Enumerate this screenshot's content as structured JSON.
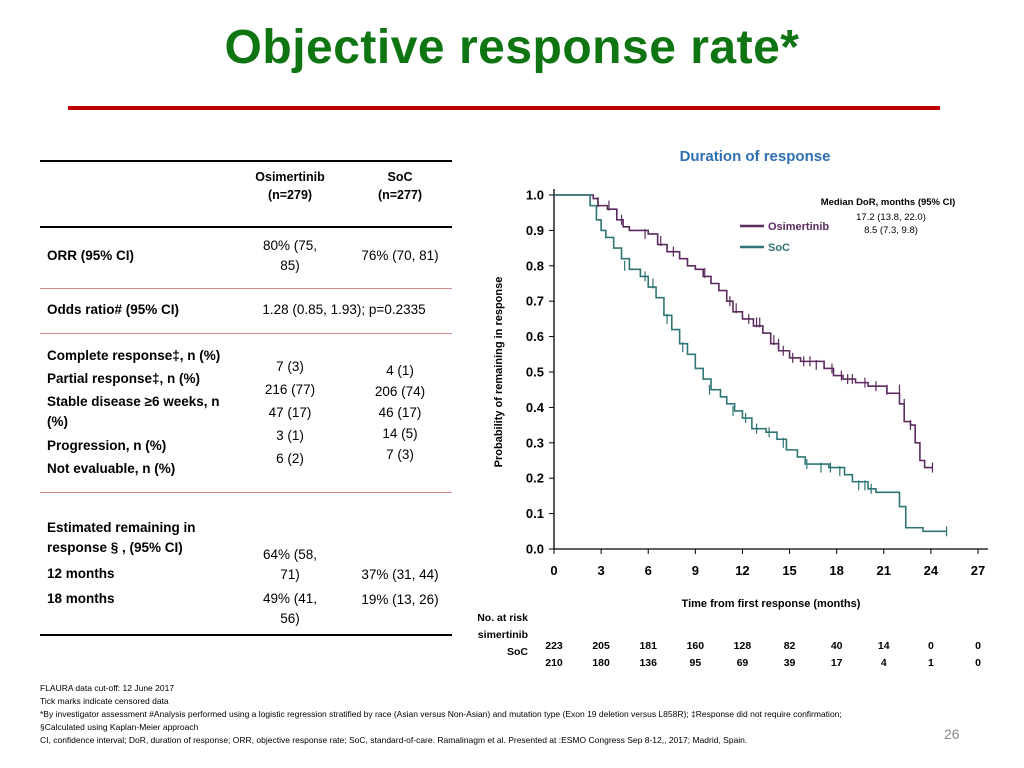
{
  "title": "Objective response rate*",
  "table": {
    "header": {
      "osi": "Osimertinib\n(n=279)",
      "soc": "SoC\n(n=277)"
    },
    "orr": {
      "label": "ORR (95% CI)",
      "osi": "80% (75,\n85)",
      "soc": "76% (70, 81)"
    },
    "odds": {
      "label": "Odds ratio# (95% CI)",
      "value": "1.28 (0.85, 1.93); p=0.2335"
    },
    "best_response": {
      "labels": [
        "Complete response‡, n (%)",
        "Partial response‡, n (%)",
        "Stable disease ≥6 weeks, n (%)",
        "Progression, n (%)",
        "Not evaluable, n (%)"
      ],
      "osi": [
        "7 (3)",
        "216 (77)",
        "47 (17)",
        "3 (1)",
        "6 (2)"
      ],
      "soc": [
        "4 (1)",
        "206 (74)",
        "46 (17)",
        "14 (5)",
        "7 (3)"
      ]
    },
    "remaining": {
      "label": "Estimated remaining in response § , (95% CI)",
      "rows": [
        {
          "label": "12 months",
          "osi": "64% (58,\n71)",
          "soc": "37% (31, 44)"
        },
        {
          "label": "18 months",
          "osi": "49% (41,\n56)",
          "soc": "19% (13, 26)"
        }
      ]
    }
  },
  "chart_title": "Duration of response",
  "chart_data": {
    "type": "line",
    "title": "Duration of response",
    "xlabel": "Time from first response (months)",
    "ylabel": "Probability of remaining in response",
    "xlim": [
      0,
      27
    ],
    "ylim": [
      0,
      1.0
    ],
    "xticks": [
      0,
      3,
      6,
      9,
      12,
      15,
      18,
      21,
      24,
      27
    ],
    "yticks": [
      0.0,
      0.1,
      0.2,
      0.3,
      0.4,
      0.5,
      0.6,
      0.7,
      0.8,
      0.9,
      1.0
    ],
    "step": true,
    "legend_title": "Median DoR, months (95% CI)",
    "legend_position": "top-right",
    "series": [
      {
        "name": "Osimertinib",
        "color": "#5b2a5e",
        "median_text": "17.2 (13.8, 22.0)",
        "points": [
          [
            0,
            1.0
          ],
          [
            1.5,
            1.0
          ],
          [
            2.5,
            0.99
          ],
          [
            2.8,
            0.97
          ],
          [
            3.4,
            0.96
          ],
          [
            4.0,
            0.93
          ],
          [
            4.4,
            0.91
          ],
          [
            4.8,
            0.9
          ],
          [
            6.0,
            0.89
          ],
          [
            6.6,
            0.86
          ],
          [
            7.2,
            0.84
          ],
          [
            8.0,
            0.82
          ],
          [
            8.5,
            0.8
          ],
          [
            9.0,
            0.79
          ],
          [
            9.5,
            0.77
          ],
          [
            10.0,
            0.75
          ],
          [
            10.5,
            0.73
          ],
          [
            11.0,
            0.7
          ],
          [
            11.4,
            0.67
          ],
          [
            12.0,
            0.65
          ],
          [
            12.7,
            0.63
          ],
          [
            13.3,
            0.61
          ],
          [
            13.8,
            0.58
          ],
          [
            14.3,
            0.56
          ],
          [
            15.0,
            0.54
          ],
          [
            15.7,
            0.53
          ],
          [
            17.2,
            0.51
          ],
          [
            17.8,
            0.49
          ],
          [
            18.4,
            0.48
          ],
          [
            19.2,
            0.47
          ],
          [
            20.0,
            0.46
          ],
          [
            21.2,
            0.44
          ],
          [
            22.0,
            0.41
          ],
          [
            22.3,
            0.36
          ],
          [
            22.7,
            0.35
          ],
          [
            23.0,
            0.3
          ],
          [
            23.3,
            0.25
          ],
          [
            23.6,
            0.23
          ],
          [
            24.1,
            0.23
          ]
        ],
        "censored": [
          [
            2.8,
            0.98
          ],
          [
            3.5,
            0.97
          ],
          [
            4.3,
            0.93
          ],
          [
            5.8,
            0.89
          ],
          [
            6.8,
            0.87
          ],
          [
            7.6,
            0.84
          ],
          [
            9.6,
            0.78
          ],
          [
            11.2,
            0.7
          ],
          [
            11.6,
            0.68
          ],
          [
            12.4,
            0.65
          ],
          [
            12.9,
            0.64
          ],
          [
            13.1,
            0.64
          ],
          [
            14.0,
            0.59
          ],
          [
            14.3,
            0.58
          ],
          [
            14.6,
            0.56
          ],
          [
            15.2,
            0.54
          ],
          [
            15.9,
            0.53
          ],
          [
            16.3,
            0.53
          ],
          [
            16.7,
            0.52
          ],
          [
            17.7,
            0.51
          ],
          [
            18.3,
            0.49
          ],
          [
            18.7,
            0.48
          ],
          [
            19.0,
            0.48
          ],
          [
            19.8,
            0.47
          ],
          [
            20.5,
            0.46
          ],
          [
            21.2,
            0.45
          ],
          [
            22.0,
            0.45
          ],
          [
            22.3,
            0.41
          ],
          [
            22.7,
            0.35
          ],
          [
            24.1,
            0.23
          ]
        ]
      },
      {
        "name": "SoC",
        "color": "#2f7575",
        "median_text": "8.5 (7.3, 9.8)",
        "points": [
          [
            0,
            1.0
          ],
          [
            1.5,
            1.0
          ],
          [
            2.3,
            0.97
          ],
          [
            2.7,
            0.93
          ],
          [
            3.0,
            0.9
          ],
          [
            3.3,
            0.88
          ],
          [
            3.8,
            0.85
          ],
          [
            4.3,
            0.82
          ],
          [
            4.8,
            0.79
          ],
          [
            5.5,
            0.77
          ],
          [
            6.0,
            0.74
          ],
          [
            6.5,
            0.71
          ],
          [
            7.0,
            0.66
          ],
          [
            7.5,
            0.62
          ],
          [
            8.0,
            0.58
          ],
          [
            8.5,
            0.55
          ],
          [
            9.0,
            0.51
          ],
          [
            9.5,
            0.48
          ],
          [
            10.0,
            0.45
          ],
          [
            10.6,
            0.43
          ],
          [
            11.0,
            0.41
          ],
          [
            11.5,
            0.39
          ],
          [
            12.0,
            0.37
          ],
          [
            12.6,
            0.34
          ],
          [
            13.5,
            0.33
          ],
          [
            14.2,
            0.31
          ],
          [
            14.8,
            0.28
          ],
          [
            15.5,
            0.26
          ],
          [
            16.0,
            0.24
          ],
          [
            17.5,
            0.23
          ],
          [
            18.5,
            0.21
          ],
          [
            19.0,
            0.19
          ],
          [
            20.0,
            0.17
          ],
          [
            20.5,
            0.16
          ],
          [
            22.0,
            0.12
          ],
          [
            22.4,
            0.06
          ],
          [
            23.5,
            0.05
          ],
          [
            25.0,
            0.05
          ]
        ],
        "censored": [
          [
            4.5,
            0.8
          ],
          [
            5.8,
            0.77
          ],
          [
            6.3,
            0.75
          ],
          [
            7.2,
            0.65
          ],
          [
            8.2,
            0.57
          ],
          [
            9.9,
            0.45
          ],
          [
            11.4,
            0.39
          ],
          [
            12.2,
            0.37
          ],
          [
            12.9,
            0.34
          ],
          [
            13.7,
            0.33
          ],
          [
            14.6,
            0.3
          ],
          [
            16.1,
            0.24
          ],
          [
            17.0,
            0.23
          ],
          [
            17.6,
            0.23
          ],
          [
            18.2,
            0.22
          ],
          [
            19.4,
            0.18
          ],
          [
            19.8,
            0.18
          ],
          [
            20.2,
            0.17
          ],
          [
            22.4,
            0.09
          ],
          [
            25.0,
            0.05
          ]
        ]
      }
    ],
    "at_risk": {
      "title": "No. at risk",
      "rows": [
        {
          "name": "Osimertinib",
          "values": [
            "223",
            "205",
            "181",
            "160",
            "128",
            "82",
            "40",
            "14",
            "0",
            "0"
          ]
        },
        {
          "name": "SoC",
          "values": [
            "210",
            "180",
            "136",
            "95",
            "69",
            "39",
            "17",
            "4",
            "1",
            "0"
          ]
        }
      ]
    }
  },
  "footnotes": [
    "FLAURA data cut-off: 12 June 2017",
    "Tick marks indicate censored data",
    "*By investigator assessment #Analysis performed using a logistic regression stratified by race (Asian versus Non-Asian) and mutation type (Exon 19 deletion versus L858R); ‡Response did not require confirmation;",
    "§Calculated using Kaplan-Meier approach",
    "CI, confidence interval; DoR, duration of response; ORR, objective response rate; SoC, standard-of-care. Ramalinagm et al. Presented at :ESMO Congress Sep 8-12,, 2017; Madrid, Spain."
  ],
  "page_number": "26"
}
